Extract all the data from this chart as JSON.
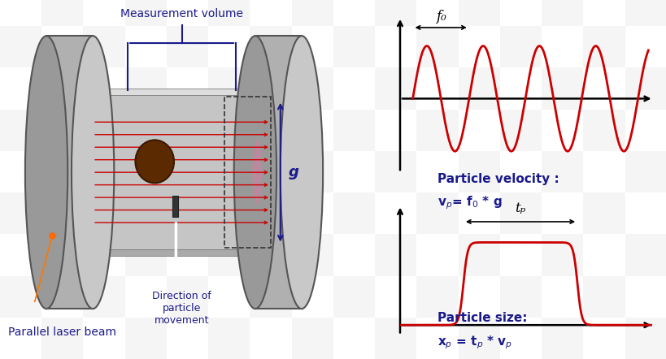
{
  "bg_color": "#ffffff",
  "checkerboard_color1": "#cccccc",
  "checkerboard_color2": "#ffffff",
  "red_color": "#cc0000",
  "dark_blue": "#00008B",
  "navy": "#1a1a6e",
  "text_color": "#1a1a8c",
  "arrow_color": "#000000",
  "sine_freq": 4.5,
  "sine_amp": 1.0,
  "title_top": "Particle velocity :",
  "formula_top": "vₚ= f₀ * g",
  "title_bottom": "Particle size:",
  "formula_bottom": "xₚ = tₚ * vₚ",
  "label_f0": "f₀",
  "label_tp": "tₚ",
  "label_g": "g",
  "measurement_label": "Measurement volume",
  "direction_label": "Direction of\nparticle\nmovement",
  "laser_label": "Parallel laser beam"
}
